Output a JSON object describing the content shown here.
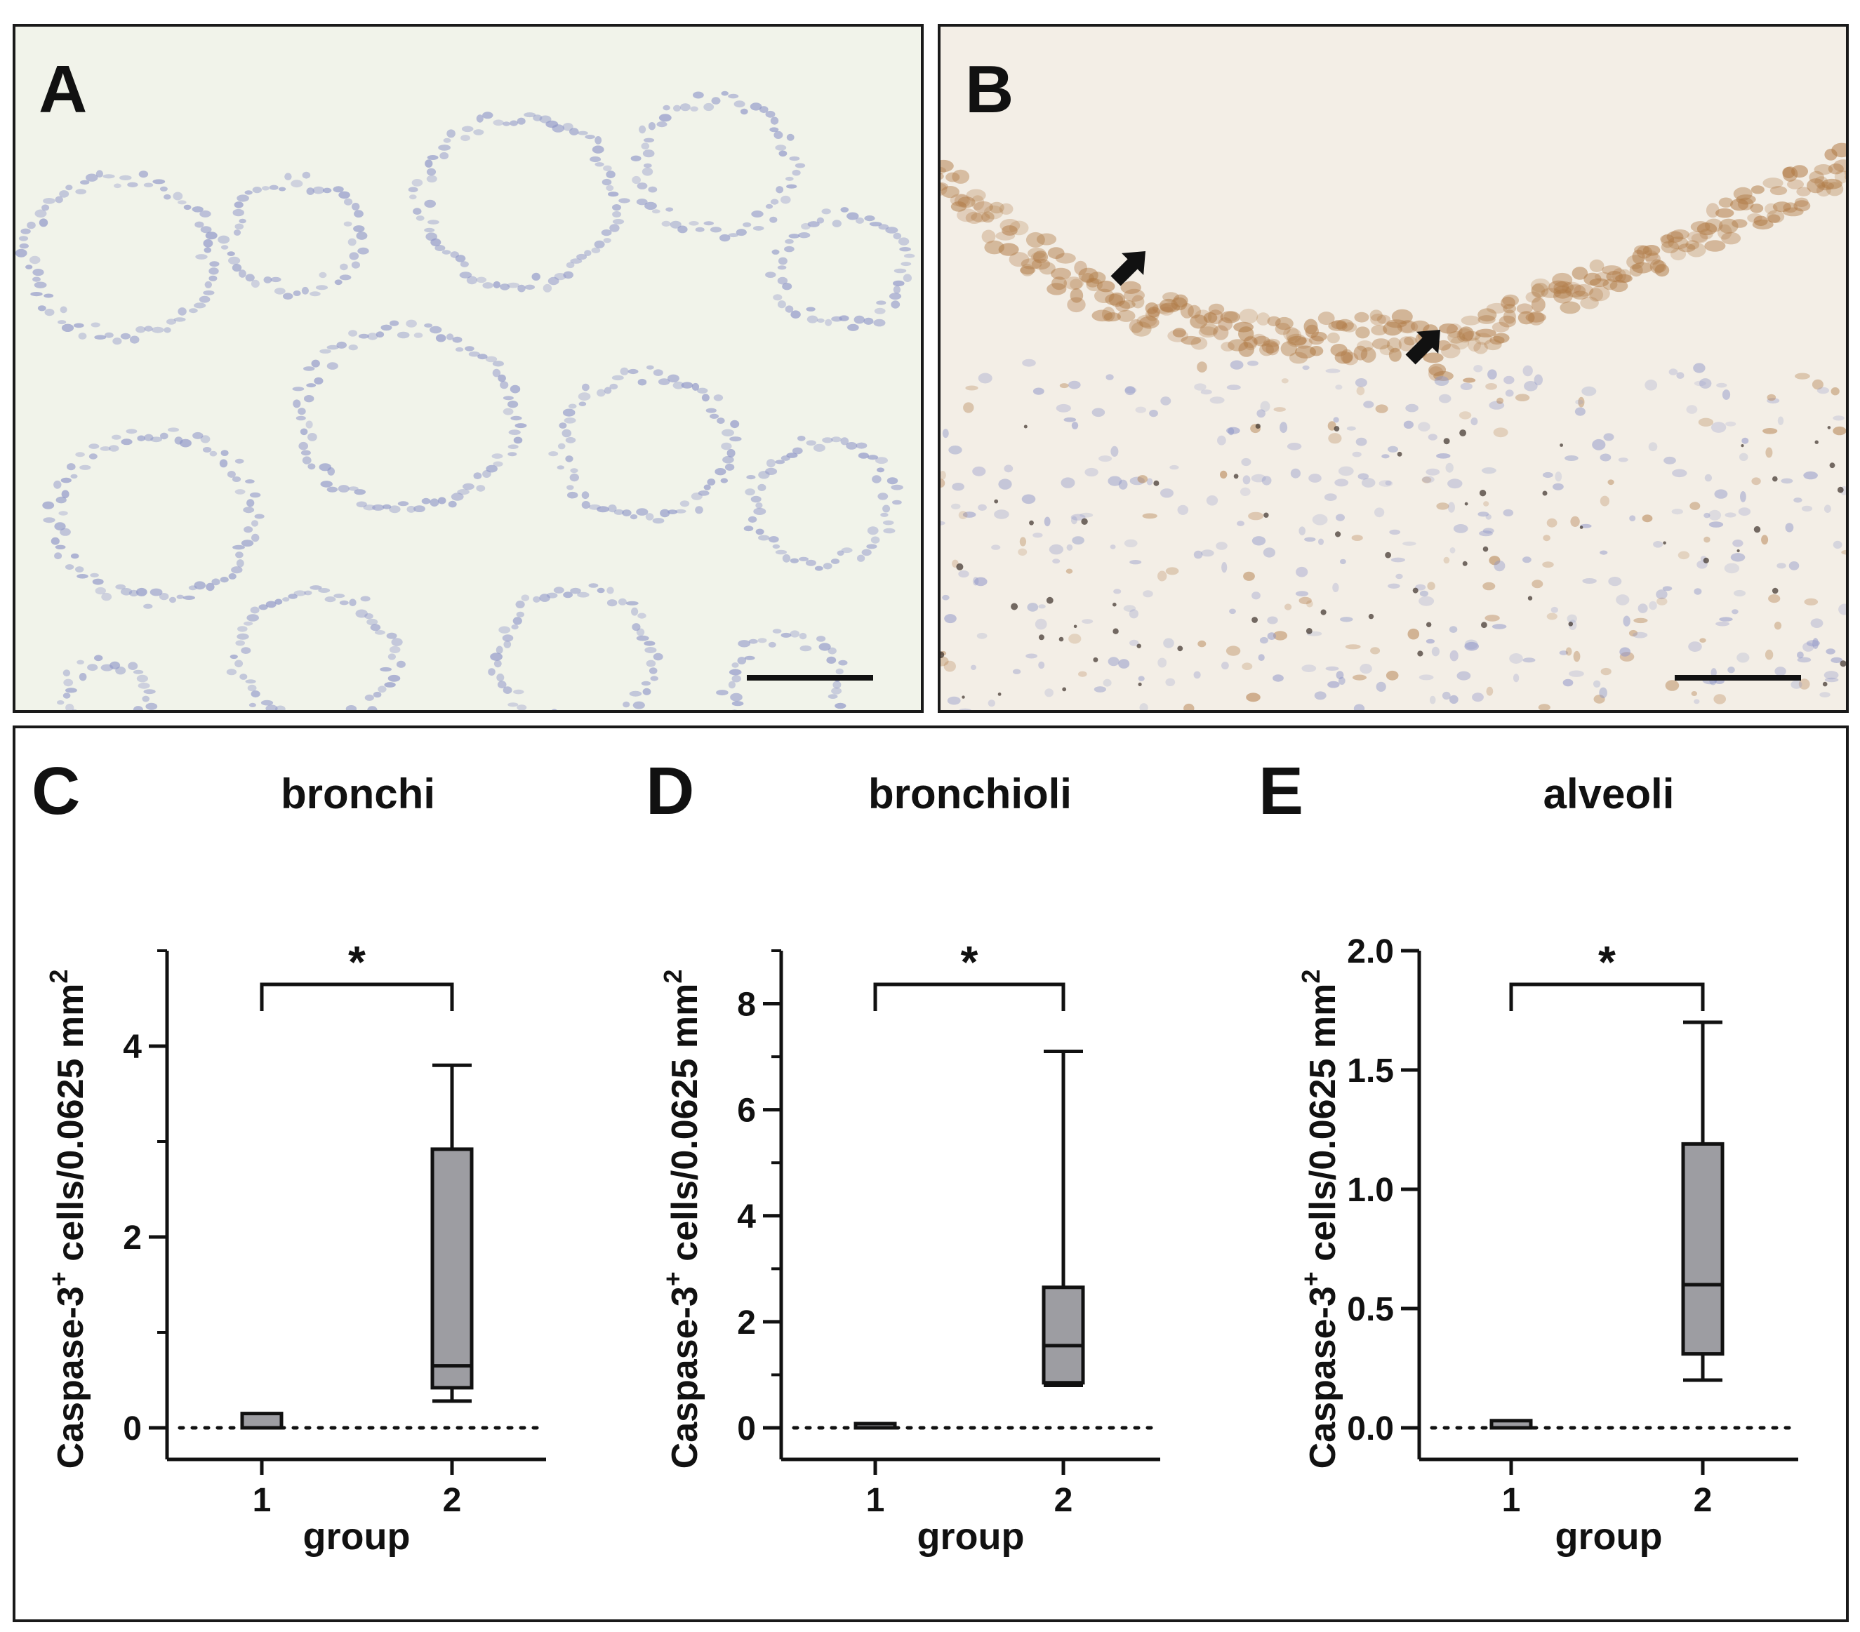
{
  "micrographs": [
    {
      "panel": "A",
      "stain": "negative"
    },
    {
      "panel": "B",
      "stain": "positive"
    }
  ],
  "colors": {
    "box_fill": "#9d9da2",
    "stroke": "#111111",
    "frame": "#1a1a1a",
    "tissue_bg_a": "#f1f3ea",
    "tissue_bg_b": "#f3eee6",
    "hematoxylin": "#8f96c8",
    "dab_brown": "#b07a45"
  },
  "chart_data": [
    {
      "panel": "C",
      "type": "box",
      "title": "bronchi",
      "xlabel": "group",
      "ylabel": "Caspase-3+ cells/0.0625 mm2",
      "ylabel_parts": {
        "pre": "Caspase-3",
        "sup1": "+",
        "mid": " cells/0.0625 mm",
        "sup2": "2"
      },
      "categories": [
        "1",
        "2"
      ],
      "ylim": [
        0,
        5
      ],
      "yticks": [
        0,
        2,
        4
      ],
      "ytick_labels": [
        "0",
        "2",
        "4"
      ],
      "minor_ticks": [
        1,
        3,
        5
      ],
      "reference_line": 0,
      "boxes": [
        {
          "group": "1",
          "min": 0,
          "q1": 0,
          "median": 0,
          "q3": 0.15,
          "max": 0.15
        },
        {
          "group": "2",
          "min": 0.28,
          "q1": 0.42,
          "median": 0.65,
          "q3": 2.92,
          "max": 3.8
        }
      ],
      "significance": {
        "from": "1",
        "to": "2",
        "label": "*"
      }
    },
    {
      "panel": "D",
      "type": "box",
      "title": "bronchioli",
      "xlabel": "group",
      "ylabel": "Caspase-3+ cells/0.0625 mm2",
      "ylabel_parts": {
        "pre": "Caspase-3",
        "sup1": "+",
        "mid": " cells/0.0625 mm",
        "sup2": "2"
      },
      "categories": [
        "1",
        "2"
      ],
      "ylim": [
        0,
        9
      ],
      "yticks": [
        0,
        2,
        4,
        6,
        8
      ],
      "ytick_labels": [
        "0",
        "2",
        "4",
        "6",
        "8"
      ],
      "minor_ticks": [
        1,
        3,
        5,
        7,
        9
      ],
      "reference_line": 0,
      "boxes": [
        {
          "group": "1",
          "min": 0,
          "q1": 0,
          "median": 0,
          "q3": 0.05,
          "max": 0.05
        },
        {
          "group": "2",
          "min": 0.8,
          "q1": 0.85,
          "median": 1.55,
          "q3": 2.65,
          "max": 7.1
        }
      ],
      "significance": {
        "from": "1",
        "to": "2",
        "label": "*"
      }
    },
    {
      "panel": "E",
      "type": "box",
      "title": "alveoli",
      "xlabel": "group",
      "ylabel": "Caspase-3+ cells/0.0625 mm2",
      "ylabel_parts": {
        "pre": "Caspase-3",
        "sup1": "+",
        "mid": " cells/0.0625 mm",
        "sup2": "2"
      },
      "categories": [
        "1",
        "2"
      ],
      "ylim": [
        0,
        2
      ],
      "yticks": [
        0,
        0.5,
        1,
        1.5,
        2
      ],
      "ytick_labels": [
        "0.0",
        "0.5",
        "1.0",
        "1.5",
        "2.0"
      ],
      "minor_ticks": [],
      "reference_line": 0,
      "boxes": [
        {
          "group": "1",
          "min": 0,
          "q1": 0,
          "median": 0,
          "q3": 0.03,
          "max": 0.03
        },
        {
          "group": "2",
          "min": 0.2,
          "q1": 0.31,
          "median": 0.6,
          "q3": 1.19,
          "max": 1.7
        }
      ],
      "significance": {
        "from": "1",
        "to": "2",
        "label": "*"
      }
    }
  ]
}
